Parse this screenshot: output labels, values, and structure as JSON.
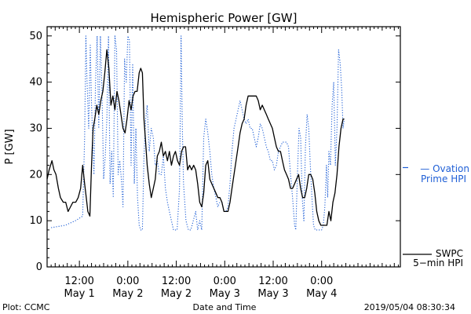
{
  "chart_data": {
    "type": "line",
    "title": "Hemispheric Power [GW]",
    "ylabel": "P [GW]",
    "xlabel": "Date and Time",
    "ylim": [
      0,
      52
    ],
    "xlim": [
      4.0,
      91.5
    ],
    "yticks": [
      0,
      10,
      20,
      30,
      40,
      50
    ],
    "x_unit": "hours since 2019-04-30 12:00 UT",
    "xticks": [
      {
        "x": 12,
        "time": "12:00",
        "date": "May 1"
      },
      {
        "x": 24,
        "time": "0:00",
        "date": "May 2"
      },
      {
        "x": 36,
        "time": "12:00",
        "date": "May 2"
      },
      {
        "x": 48,
        "time": "0:00",
        "date": "May 3"
      },
      {
        "x": 60,
        "time": "12:00",
        "date": "May 3"
      },
      {
        "x": 72,
        "time": "0:00",
        "date": "May 4"
      }
    ],
    "series": [
      {
        "name": "SWPC 5-min HPI",
        "color": "#000000",
        "style": "solid",
        "points": [
          [
            4.0,
            19
          ],
          [
            4.5,
            21
          ],
          [
            5.2,
            23
          ],
          [
            5.7,
            21
          ],
          [
            6.2,
            20
          ],
          [
            6.8,
            17
          ],
          [
            7.3,
            15
          ],
          [
            8.0,
            14
          ],
          [
            8.6,
            14
          ],
          [
            9.2,
            12
          ],
          [
            9.8,
            13
          ],
          [
            10.4,
            14
          ],
          [
            11.1,
            14
          ],
          [
            11.7,
            15
          ],
          [
            12.3,
            17
          ],
          [
            12.8,
            22
          ],
          [
            13.3,
            18
          ],
          [
            13.7,
            15
          ],
          [
            14.1,
            12
          ],
          [
            14.6,
            11
          ],
          [
            15.0,
            22
          ],
          [
            15.4,
            30
          ],
          [
            15.8,
            32
          ],
          [
            16.3,
            35
          ],
          [
            16.8,
            33
          ],
          [
            17.3,
            36
          ],
          [
            17.8,
            38
          ],
          [
            18.3,
            42
          ],
          [
            18.8,
            47
          ],
          [
            19.3,
            43
          ],
          [
            19.8,
            35
          ],
          [
            20.3,
            37
          ],
          [
            20.8,
            34
          ],
          [
            21.3,
            38
          ],
          [
            21.8,
            36
          ],
          [
            22.3,
            33
          ],
          [
            22.8,
            30
          ],
          [
            23.3,
            29
          ],
          [
            23.8,
            32
          ],
          [
            24.3,
            36
          ],
          [
            24.8,
            34
          ],
          [
            25.3,
            37
          ],
          [
            25.8,
            38
          ],
          [
            26.3,
            38
          ],
          [
            26.8,
            42
          ],
          [
            27.2,
            43
          ],
          [
            27.6,
            42
          ],
          [
            28.0,
            32
          ],
          [
            28.4,
            27
          ],
          [
            28.8,
            22
          ],
          [
            29.3,
            18
          ],
          [
            29.8,
            15
          ],
          [
            30.3,
            17
          ],
          [
            30.8,
            19
          ],
          [
            31.3,
            24
          ],
          [
            31.8,
            25
          ],
          [
            32.3,
            27
          ],
          [
            32.8,
            24
          ],
          [
            33.3,
            25
          ],
          [
            33.8,
            23
          ],
          [
            34.3,
            25
          ],
          [
            34.8,
            22
          ],
          [
            35.3,
            24
          ],
          [
            35.8,
            25
          ],
          [
            36.3,
            23
          ],
          [
            36.8,
            22
          ],
          [
            37.3,
            25
          ],
          [
            37.8,
            26
          ],
          [
            38.3,
            26
          ],
          [
            38.8,
            21
          ],
          [
            39.3,
            22
          ],
          [
            39.8,
            21
          ],
          [
            40.3,
            22
          ],
          [
            40.8,
            21
          ],
          [
            41.3,
            18
          ],
          [
            41.8,
            14
          ],
          [
            42.3,
            13
          ],
          [
            42.8,
            16
          ],
          [
            43.3,
            22
          ],
          [
            43.8,
            23
          ],
          [
            44.3,
            19
          ],
          [
            44.8,
            18
          ],
          [
            45.3,
            17
          ],
          [
            45.8,
            16
          ],
          [
            46.3,
            15
          ],
          [
            46.8,
            15
          ],
          [
            47.3,
            14
          ],
          [
            47.8,
            12
          ],
          [
            48.3,
            12
          ],
          [
            48.8,
            12
          ],
          [
            49.3,
            14
          ],
          [
            49.8,
            17
          ],
          [
            50.3,
            20
          ],
          [
            50.8,
            23
          ],
          [
            51.3,
            26
          ],
          [
            51.8,
            29
          ],
          [
            52.3,
            31
          ],
          [
            52.8,
            32
          ],
          [
            53.3,
            35
          ],
          [
            53.8,
            37
          ],
          [
            54.3,
            37
          ],
          [
            54.8,
            37
          ],
          [
            55.3,
            37
          ],
          [
            55.8,
            37
          ],
          [
            56.3,
            36
          ],
          [
            56.8,
            34
          ],
          [
            57.3,
            35
          ],
          [
            57.8,
            34
          ],
          [
            58.3,
            33
          ],
          [
            58.8,
            32
          ],
          [
            59.3,
            31
          ],
          [
            59.8,
            30
          ],
          [
            60.3,
            28
          ],
          [
            60.8,
            26
          ],
          [
            61.3,
            25
          ],
          [
            61.8,
            25
          ],
          [
            62.3,
            23
          ],
          [
            62.8,
            21
          ],
          [
            63.3,
            20
          ],
          [
            63.8,
            19
          ],
          [
            64.3,
            17
          ],
          [
            64.8,
            17
          ],
          [
            65.3,
            18
          ],
          [
            65.8,
            19
          ],
          [
            66.3,
            20
          ],
          [
            66.8,
            17
          ],
          [
            67.3,
            15
          ],
          [
            67.8,
            15
          ],
          [
            68.3,
            17
          ],
          [
            68.8,
            20
          ],
          [
            69.3,
            20
          ],
          [
            69.8,
            19
          ],
          [
            70.3,
            16
          ],
          [
            70.8,
            12
          ],
          [
            71.3,
            10
          ],
          [
            71.8,
            9
          ],
          [
            72.3,
            9
          ],
          [
            72.8,
            9
          ],
          [
            73.3,
            9
          ],
          [
            73.8,
            12
          ],
          [
            74.3,
            10
          ],
          [
            74.8,
            14
          ],
          [
            75.3,
            16
          ],
          [
            75.8,
            20
          ],
          [
            76.3,
            26
          ],
          [
            76.8,
            30
          ],
          [
            77.3,
            32
          ],
          [
            77.6,
            32
          ]
        ]
      },
      {
        "name": "Ovation Prime HPI",
        "color": "#1f5fd6",
        "style": "dotted",
        "points": [
          [
            5.0,
            8.5
          ],
          [
            8.5,
            9
          ],
          [
            11.0,
            10
          ],
          [
            12.8,
            11
          ],
          [
            13.3,
            28
          ],
          [
            13.6,
            50
          ],
          [
            13.9,
            40
          ],
          [
            14.3,
            30
          ],
          [
            14.7,
            48
          ],
          [
            15.0,
            35
          ],
          [
            15.6,
            20
          ],
          [
            16.0,
            40
          ],
          [
            16.4,
            50
          ],
          [
            16.8,
            30
          ],
          [
            17.2,
            50
          ],
          [
            17.6,
            38
          ],
          [
            18.0,
            19
          ],
          [
            18.4,
            24
          ],
          [
            18.8,
            32
          ],
          [
            19.2,
            50
          ],
          [
            19.6,
            18
          ],
          [
            20.0,
            25
          ],
          [
            20.4,
            15
          ],
          [
            20.8,
            50
          ],
          [
            21.2,
            47
          ],
          [
            21.6,
            20
          ],
          [
            22.0,
            23
          ],
          [
            22.4,
            19
          ],
          [
            22.8,
            13
          ],
          [
            23.2,
            45
          ],
          [
            23.6,
            40
          ],
          [
            24.0,
            50
          ],
          [
            24.4,
            49
          ],
          [
            24.8,
            22
          ],
          [
            25.2,
            44
          ],
          [
            25.6,
            18
          ],
          [
            26.0,
            30
          ],
          [
            26.4,
            15
          ],
          [
            26.8,
            9
          ],
          [
            27.2,
            8
          ],
          [
            27.6,
            8
          ],
          [
            28.0,
            24
          ],
          [
            28.4,
            32
          ],
          [
            28.8,
            35
          ],
          [
            29.3,
            25
          ],
          [
            29.8,
            30
          ],
          [
            30.3,
            28
          ],
          [
            30.8,
            22
          ],
          [
            31.3,
            23
          ],
          [
            31.8,
            20
          ],
          [
            32.3,
            20
          ],
          [
            32.8,
            24
          ],
          [
            33.3,
            17
          ],
          [
            33.8,
            14
          ],
          [
            34.3,
            12
          ],
          [
            34.8,
            10
          ],
          [
            35.3,
            8
          ],
          [
            35.8,
            8
          ],
          [
            36.2,
            8
          ],
          [
            36.8,
            17
          ],
          [
            37.2,
            50
          ],
          [
            37.5,
            30
          ],
          [
            37.8,
            18
          ],
          [
            38.4,
            10
          ],
          [
            39.0,
            8
          ],
          [
            39.6,
            8
          ],
          [
            40.2,
            10
          ],
          [
            40.8,
            12
          ],
          [
            41.3,
            8
          ],
          [
            41.8,
            10
          ],
          [
            42.3,
            8
          ],
          [
            42.8,
            28
          ],
          [
            43.3,
            32
          ],
          [
            43.8,
            29
          ],
          [
            44.3,
            25
          ],
          [
            44.8,
            20
          ],
          [
            45.3,
            17
          ],
          [
            45.8,
            15
          ],
          [
            46.3,
            13
          ],
          [
            46.8,
            14
          ],
          [
            47.3,
            14
          ],
          [
            47.8,
            12
          ],
          [
            48.3,
            12
          ],
          [
            48.8,
            13
          ],
          [
            49.3,
            18
          ],
          [
            49.8,
            25
          ],
          [
            50.3,
            30
          ],
          [
            50.8,
            32
          ],
          [
            51.3,
            34
          ],
          [
            51.8,
            36
          ],
          [
            52.3,
            34
          ],
          [
            52.8,
            32
          ],
          [
            53.3,
            31
          ],
          [
            53.8,
            32
          ],
          [
            54.3,
            30
          ],
          [
            54.8,
            30
          ],
          [
            55.3,
            28
          ],
          [
            55.8,
            26
          ],
          [
            56.3,
            28
          ],
          [
            56.8,
            31
          ],
          [
            57.3,
            30
          ],
          [
            57.8,
            28
          ],
          [
            58.3,
            26
          ],
          [
            58.8,
            25
          ],
          [
            59.3,
            23
          ],
          [
            59.8,
            23
          ],
          [
            60.3,
            21
          ],
          [
            60.8,
            22
          ],
          [
            61.3,
            25
          ],
          [
            61.8,
            26
          ],
          [
            62.3,
            27
          ],
          [
            62.8,
            27
          ],
          [
            63.3,
            27
          ],
          [
            63.8,
            26
          ],
          [
            64.3,
            20
          ],
          [
            64.8,
            15
          ],
          [
            65.3,
            9
          ],
          [
            65.6,
            8
          ],
          [
            66.0,
            20
          ],
          [
            66.4,
            30
          ],
          [
            66.8,
            28
          ],
          [
            67.2,
            15
          ],
          [
            67.6,
            10
          ],
          [
            68.0,
            26
          ],
          [
            68.4,
            33
          ],
          [
            68.8,
            30
          ],
          [
            69.2,
            22
          ],
          [
            69.6,
            15
          ],
          [
            70.0,
            9
          ],
          [
            70.4,
            8
          ],
          [
            70.8,
            8
          ],
          [
            71.2,
            8
          ],
          [
            71.6,
            8
          ],
          [
            72.0,
            8
          ],
          [
            72.4,
            9
          ],
          [
            72.8,
            13
          ],
          [
            73.2,
            22
          ],
          [
            73.5,
            15
          ],
          [
            73.8,
            25
          ],
          [
            74.2,
            22
          ],
          [
            74.6,
            35
          ],
          [
            75.0,
            40
          ],
          [
            75.4,
            22
          ],
          [
            75.8,
            30
          ],
          [
            76.2,
            47
          ],
          [
            76.6,
            44
          ],
          [
            77.0,
            38
          ],
          [
            77.3,
            30
          ],
          [
            77.6,
            32
          ]
        ]
      }
    ],
    "legend": [
      {
        "series": "Ovation Prime HPI",
        "line1": "— Ovation",
        "line2": "Prime HPI",
        "color": "#1f5fd6",
        "placement": "right-middle"
      },
      {
        "series": "SWPC 5-min HPI",
        "line1": "SWPC",
        "line2": "5−min HPI",
        "color": "#000000",
        "placement": "right-bottom"
      }
    ]
  },
  "footer": {
    "plot_credit": "Plot: CCMC",
    "xaxis_label": "Date and Time",
    "timestamp": "2019/05/04 08:30:34"
  }
}
